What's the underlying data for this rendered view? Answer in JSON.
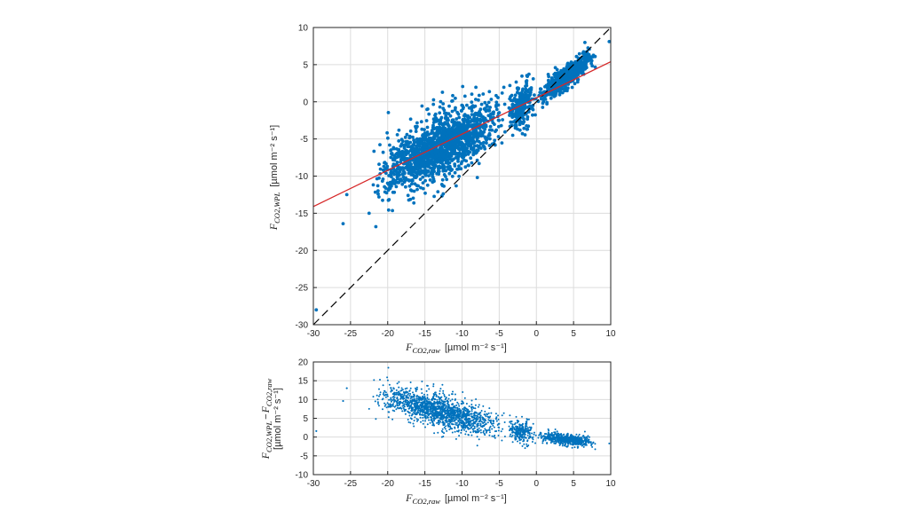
{
  "chart_data": [
    {
      "type": "scatter",
      "xlim": [
        -30,
        10
      ],
      "ylim": [
        -30,
        10
      ],
      "xticks": [
        "-30",
        "-25",
        "-20",
        "-15",
        "-10",
        "-5",
        "0",
        "5",
        "10"
      ],
      "yticks": [
        "-30",
        "-25",
        "-20",
        "-15",
        "-10",
        "-5",
        "0",
        "5",
        "10"
      ],
      "grid": true,
      "xlabel": {
        "symbol": "F",
        "sub": "CO2,raw",
        "unit": "[µmol m⁻² s⁻¹]"
      },
      "ylabel": {
        "symbol": "F",
        "sub": "CO2,WPL",
        "unit": "[µmol m⁻² s⁻¹]"
      },
      "point_color": "#0072bd",
      "fit_line": {
        "color": "#d62728",
        "x": [
          -30,
          10
        ],
        "y": [
          -14.1,
          5.4
        ]
      },
      "one_to_one_line": {
        "color": "#000000",
        "style": "dashed",
        "x": [
          -30,
          10
        ],
        "y": [
          -30,
          10
        ]
      },
      "clusters": [
        {
          "x_range": [
            -22,
            -4
          ],
          "slope": 0.5,
          "intercept": 0.5,
          "spread": 2.6,
          "count": 1500
        },
        {
          "x_range": [
            -4,
            0
          ],
          "slope": 0.5,
          "intercept": 0.5,
          "spread": 1.8,
          "count": 250
        },
        {
          "x_range": [
            0,
            8
          ],
          "slope": 0.78,
          "intercept": 0.2,
          "spread": 0.9,
          "count": 600
        }
      ],
      "outliers": [
        [
          -29.6,
          -28.0
        ],
        [
          -26.0,
          -16.4
        ],
        [
          -25.5,
          -12.5
        ],
        [
          -21.6,
          -16.8
        ],
        [
          -22.5,
          -15.0
        ],
        [
          9.8,
          8.1
        ]
      ]
    },
    {
      "type": "scatter",
      "xlim": [
        -30,
        10
      ],
      "ylim": [
        -10,
        20
      ],
      "xticks": [
        "-30",
        "-25",
        "-20",
        "-15",
        "-10",
        "-5",
        "0",
        "5",
        "10"
      ],
      "yticks": [
        "-10",
        "-5",
        "0",
        "5",
        "10",
        "15",
        "20"
      ],
      "grid": true,
      "xlabel": {
        "symbol": "F",
        "sub": "CO2,raw",
        "unit": "[µmol m⁻² s⁻¹]"
      },
      "ylabel": {
        "line1_symbol1": "F",
        "line1_sub1": "CO2,WPL",
        "line1_op": "−",
        "line1_symbol2": "F",
        "line1_sub2": "CO2,raw",
        "line2": "[µmol m⁻² s⁻¹]"
      },
      "point_color": "#0072bd",
      "derived_from": "difference of panel 1 clusters (y − x)",
      "outliers": [
        [
          -29.6,
          1.6
        ],
        [
          -26.0,
          9.6
        ],
        [
          -25.5,
          13.0
        ]
      ]
    }
  ]
}
